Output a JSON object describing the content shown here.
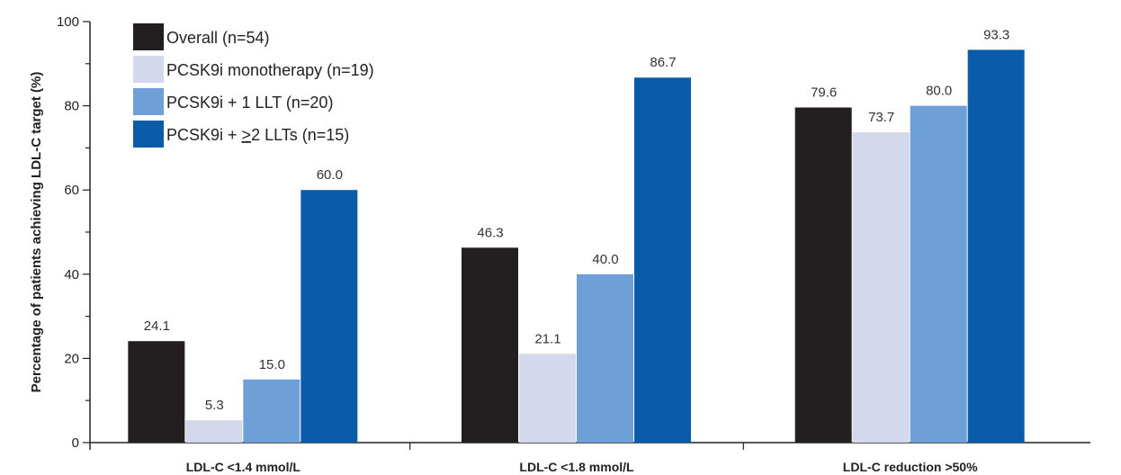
{
  "chart_data": {
    "type": "bar",
    "title": "",
    "ylabel": "Percentage of patients achieving LDL-C target (%)",
    "xlabel": "",
    "ylim": [
      0,
      100
    ],
    "yticks": [
      "0",
      "20",
      "40",
      "60",
      "80",
      "100"
    ],
    "categories": [
      "LDL-C <1.4 mmol/L",
      "LDL-C <1.8 mmol/L",
      "LDL-C reduction >50%"
    ],
    "series": [
      {
        "name": "Overall (n=54)",
        "color": "#231f20",
        "values": [
          24.1,
          46.3,
          79.6
        ],
        "labels": [
          "24.1",
          "46.3",
          "79.6"
        ]
      },
      {
        "name": "PCSK9i monotherapy (n=19)",
        "color": "#d3d8ec",
        "values": [
          5.3,
          21.1,
          73.7
        ],
        "labels": [
          "5.3",
          "21.1",
          "73.7"
        ]
      },
      {
        "name": "PCSK9i + 1 LLT (n=20)",
        "color": "#6e9fd6",
        "values": [
          15.0,
          40.0,
          80.0
        ],
        "labels": [
          "15.0",
          "40.0",
          "80.0"
        ]
      },
      {
        "name": "PCSK9i + ≥2 LLTs (n=15)",
        "name_prefix": "PCSK9i + ",
        "name_underlined": ">",
        "name_suffix": "2 LLTs (n=15)",
        "color": "#0a5cab",
        "values": [
          60.0,
          86.7,
          93.3
        ],
        "labels": [
          "60.0",
          "86.7",
          "93.3"
        ]
      }
    ],
    "legend_position": "top-left",
    "grid": false
  }
}
